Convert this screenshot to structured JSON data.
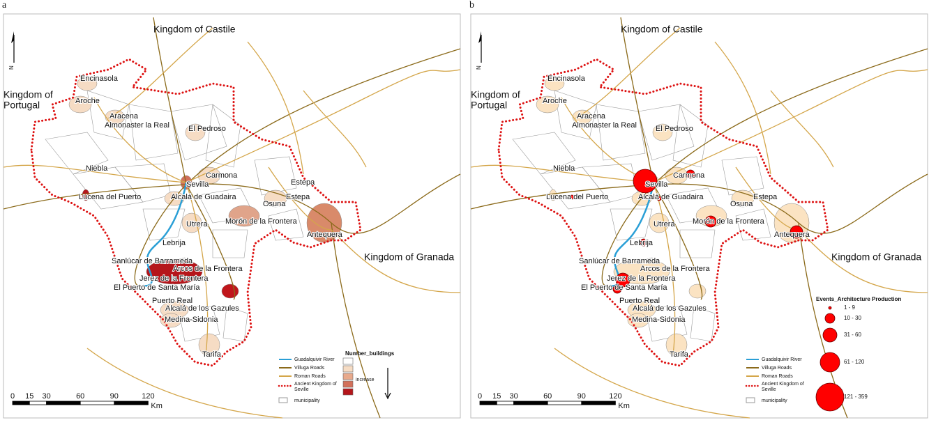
{
  "panels": [
    {
      "label": "a",
      "regions": {
        "castile": "Kingdom of Castile",
        "portugal": [
          "Kingdom of",
          "Portugal"
        ],
        "granada": "Kingdom of Granada"
      },
      "places": [
        "Encinasola",
        "Aroche",
        "Aracena",
        "Almonaster la Real",
        "El Pedroso",
        "Niebla",
        "Carmona",
        "Sevilla",
        "Lucena del Puerto",
        "Alcalá de Guadaira",
        "Estepa",
        "Osuna",
        "Estepa",
        "Morón de la Frontera",
        "Utrera",
        "Antequera",
        "Lebrija",
        "Sanlúcar de Barrameda",
        "Arcos de la Frontera",
        "Jerez de la Frontera",
        "El Puerto de Santa María",
        "Puerto Real",
        "Alcalá de los Gazules",
        "Medina-Sidonia",
        "Tarifa"
      ],
      "legend": {
        "river": "Guadalquivir River",
        "villuga": "Villuga Roads",
        "roman": "Roman Roads",
        "kingdom": [
          "Ancient Kingdom of",
          "Seville"
        ],
        "municipality": "municipality"
      },
      "classes": {
        "title": "Number_buildings",
        "colors": [
          "#ffffff",
          "#f6dcc4",
          "#e8a98b",
          "#d2705a",
          "#b5161b"
        ],
        "note": "increase"
      },
      "scale": {
        "ticks": [
          0,
          15,
          30,
          60,
          90,
          120
        ],
        "unit": "Km"
      },
      "north": "N"
    },
    {
      "label": "b",
      "regions": {
        "castile": "Kingdom of Castile",
        "portugal": [
          "Kingdom of",
          "Portugal"
        ],
        "granada": "Kingdom of Granada"
      },
      "places": [
        "Encinasola",
        "Aroche",
        "Aracena",
        "Almonaster la Real",
        "El Pedroso",
        "Niebla",
        "Carmona",
        "Sevilla",
        "Lucena del Puerto",
        "Alcalá de Guadaira",
        "Osuna",
        "Estepa",
        "Morón de la Frontera",
        "Utrera",
        "Antequera",
        "Lebrija",
        "Sanlúcar de Barrameda",
        "Arcos de la Frontera",
        "Jerez de la Frontera",
        "El Puerto de Santa María",
        "Puerto Real",
        "Alcalá de los Gazules",
        "Medina-Sidonia",
        "Tarifa"
      ],
      "legend": {
        "river": "Guadalquivir River",
        "villuga": "Villuga Roads",
        "roman": "Roman Roads",
        "kingdom": [
          "Ancient Kingdom of",
          "Seville"
        ],
        "municipality": "municipality"
      },
      "bubbles": {
        "title": "Events_Architecture Production",
        "classes": [
          "1 - 9",
          "10 - 30",
          "31 - 60",
          "61 - 120",
          "121 - 359"
        ]
      },
      "scale": {
        "ticks": [
          0,
          15,
          30,
          60,
          90,
          120
        ],
        "unit": "Km"
      },
      "north": "N"
    }
  ]
}
